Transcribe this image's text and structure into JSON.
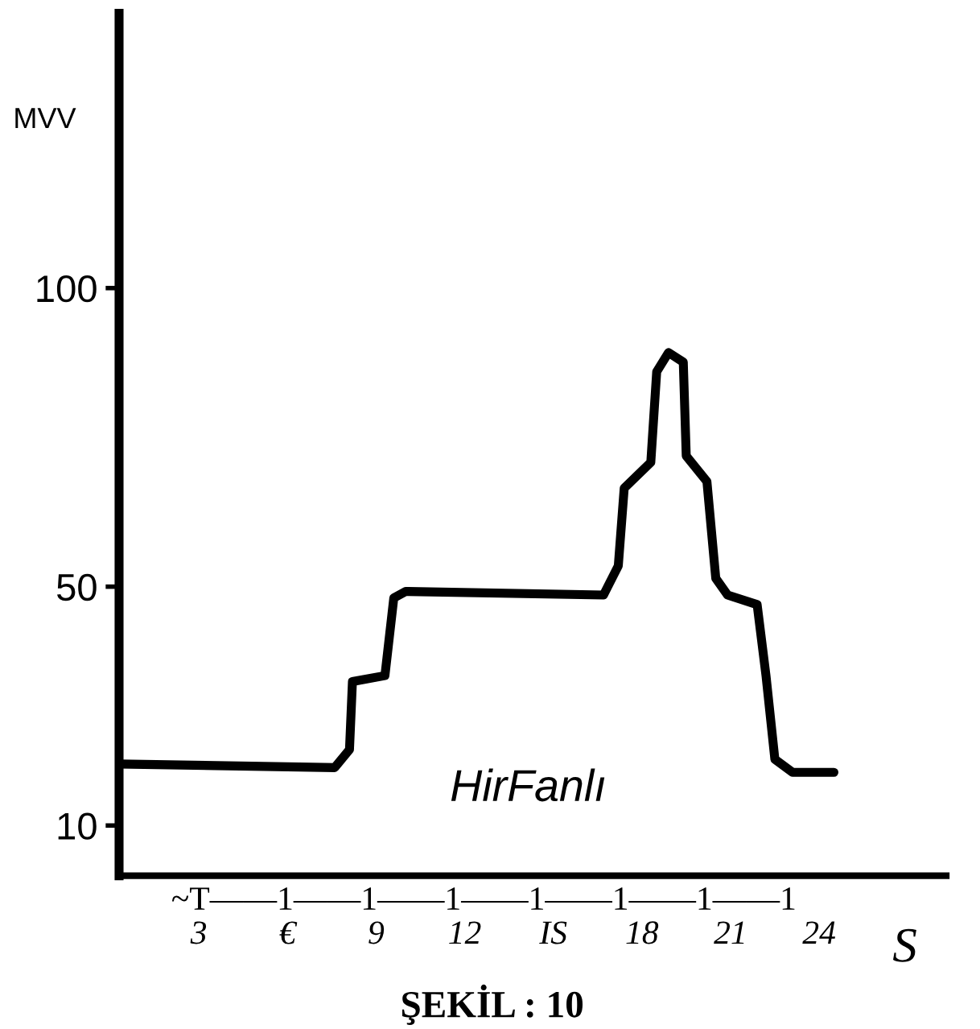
{
  "chart_data": {
    "type": "line",
    "ylabel": "MVV",
    "xlabel": "S",
    "annotations": [
      "HirFanlı",
      "~T——1——1——1——1——1——1——1",
      "ŞEKİL : 10"
    ],
    "x": [
      0.3,
      7.6,
      8.1,
      8.2,
      9.3,
      9.6,
      10,
      16.7,
      17.2,
      17.4,
      18.3,
      18.5,
      18.9,
      19.4,
      19.5,
      20.2,
      20.5,
      20.9,
      21.9,
      22.2,
      22.5,
      23.1,
      24.5
    ],
    "series": [
      {
        "color": "#000000",
        "values": [
          20.3,
          19.7,
          22.7,
          34.1,
          35.1,
          48.1,
          49.2,
          48.6,
          53.5,
          66.5,
          70.8,
          86,
          89.2,
          87.6,
          71.9,
          67.6,
          51.4,
          48.6,
          47,
          35.1,
          21.1,
          18.9,
          18.9
        ]
      }
    ],
    "xlim": [
      0.3,
      28.3
    ],
    "ylim": [
      1.6,
      146
    ],
    "xticks": [
      3,
      {
        "value": 6,
        "label": "€"
      },
      9,
      12,
      {
        "value": 15,
        "label": "IS"
      },
      18,
      21,
      24
    ],
    "yticks": [
      10,
      50,
      100
    ],
    "grid": false,
    "legend": false,
    "marker": "none",
    "line_style": "solid"
  }
}
